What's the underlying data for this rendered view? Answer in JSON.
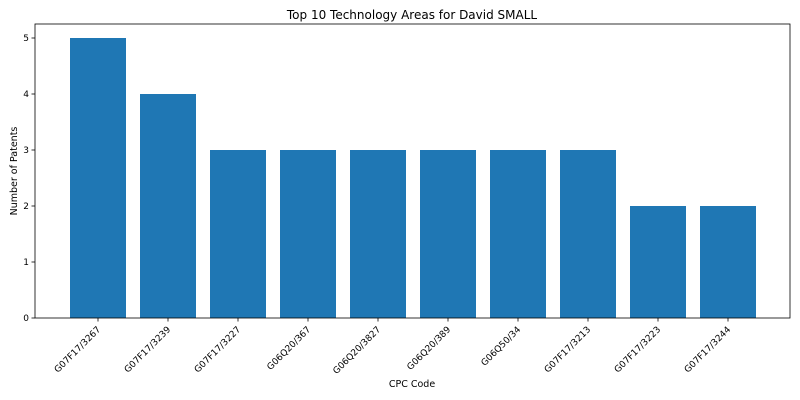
{
  "chart_data": {
    "type": "bar",
    "title": "Top 10 Technology Areas for David SMALL",
    "xlabel": "CPC Code",
    "ylabel": "Number of Patents",
    "categories": [
      "G07F17/3267",
      "G07F17/3239",
      "G07F17/3227",
      "G06Q20/367",
      "G06Q20/3827",
      "G06Q20/389",
      "G06Q50/34",
      "G07F17/3213",
      "G07F17/3223",
      "G07F17/3244"
    ],
    "values": [
      5,
      4,
      3,
      3,
      3,
      3,
      3,
      3,
      2,
      2
    ],
    "ylim": [
      0,
      5.25
    ],
    "yticks": [
      0,
      1,
      2,
      3,
      4,
      5
    ],
    "grid": false,
    "legend": "none",
    "bar_color": "#1f77b4"
  }
}
